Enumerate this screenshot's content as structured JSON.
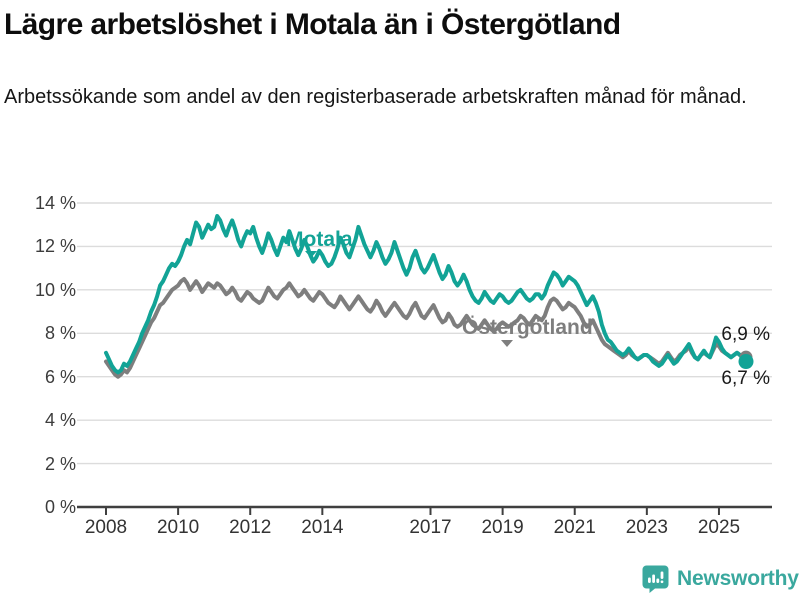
{
  "header": {
    "title": "Lägre arbetslöshet i Motala än i Östergötland",
    "subtitle": "Arbetssökande som andel av den registerbaserade arbetskraften månad för månad."
  },
  "colors": {
    "motala_teal": "#12a396",
    "ostergotland_gray": "#7e7e7e",
    "gridline": "#dcdcdc",
    "axis": "#3f3f3f",
    "tick_text": "#3c3c3c",
    "title_text": "#0d0d0d"
  },
  "chart_data": {
    "type": "line",
    "unit": "%",
    "frequency": "monthly",
    "x_start": "2008-01",
    "x_end": "2025-10",
    "ylim": [
      0,
      14
    ],
    "grid": "horizontal",
    "legend_position": "inline-labels",
    "yticks": [
      {
        "value": 14,
        "label": "14 %"
      },
      {
        "value": 12,
        "label": "12 %"
      },
      {
        "value": 10,
        "label": "10 %"
      },
      {
        "value": 8,
        "label": "8 %"
      },
      {
        "value": 6,
        "label": "6 %"
      },
      {
        "value": 4,
        "label": "4 %"
      },
      {
        "value": 2,
        "label": "2 %"
      },
      {
        "value": 0,
        "label": "0 %"
      }
    ],
    "xticks": [
      {
        "year": 2008,
        "label": "2008"
      },
      {
        "year": 2010,
        "label": "2010"
      },
      {
        "year": 2012,
        "label": "2012"
      },
      {
        "year": 2014,
        "label": "2014"
      },
      {
        "year": 2017,
        "label": "2017"
      },
      {
        "year": 2019,
        "label": "2019"
      },
      {
        "year": 2021,
        "label": "2021"
      },
      {
        "year": 2023,
        "label": "2023"
      },
      {
        "year": 2025,
        "label": "2025"
      }
    ],
    "series": [
      {
        "name": "Motala",
        "color": "#12a396",
        "end_value": 6.7,
        "end_label": "6,7 %",
        "values": [
          7.1,
          6.8,
          6.5,
          6.3,
          6.2,
          6.3,
          6.6,
          6.5,
          6.7,
          7.0,
          7.3,
          7.6,
          8.0,
          8.3,
          8.6,
          9.0,
          9.3,
          9.7,
          10.2,
          10.4,
          10.7,
          11.0,
          11.2,
          11.1,
          11.3,
          11.6,
          12.0,
          12.3,
          12.1,
          12.6,
          13.1,
          12.9,
          12.4,
          12.7,
          13.0,
          12.8,
          12.9,
          13.4,
          13.2,
          12.8,
          12.5,
          12.9,
          13.2,
          12.8,
          12.3,
          12.0,
          12.4,
          12.7,
          12.6,
          12.9,
          12.4,
          12.0,
          11.7,
          12.1,
          12.6,
          12.3,
          11.9,
          11.6,
          12.0,
          12.4,
          12.2,
          12.7,
          12.3,
          11.9,
          11.6,
          11.9,
          12.3,
          12.0,
          11.6,
          11.3,
          11.5,
          11.8,
          11.6,
          11.3,
          11.1,
          11.2,
          11.5,
          11.9,
          12.4,
          12.1,
          11.7,
          11.5,
          11.9,
          12.3,
          12.9,
          12.5,
          12.1,
          11.8,
          11.5,
          11.8,
          12.2,
          11.9,
          11.5,
          11.2,
          11.4,
          11.7,
          12.2,
          11.8,
          11.4,
          11.0,
          10.7,
          11.0,
          11.5,
          11.8,
          11.4,
          11.0,
          10.8,
          11.0,
          11.3,
          11.6,
          11.2,
          10.8,
          10.5,
          10.7,
          11.1,
          10.8,
          10.4,
          10.2,
          10.4,
          10.7,
          10.4,
          10.0,
          9.7,
          9.5,
          9.4,
          9.6,
          9.9,
          9.7,
          9.5,
          9.4,
          9.6,
          9.8,
          9.7,
          9.5,
          9.4,
          9.5,
          9.7,
          9.9,
          10.0,
          9.8,
          9.6,
          9.5,
          9.6,
          9.8,
          9.8,
          9.6,
          9.8,
          10.2,
          10.5,
          10.8,
          10.7,
          10.5,
          10.2,
          10.4,
          10.6,
          10.5,
          10.4,
          10.2,
          9.9,
          9.6,
          9.3,
          9.5,
          9.7,
          9.4,
          9.0,
          8.4,
          8.0,
          7.7,
          7.6,
          7.4,
          7.2,
          7.1,
          7.0,
          7.1,
          7.3,
          7.1,
          6.9,
          6.8,
          6.9,
          7.0,
          7.0,
          6.9,
          6.7,
          6.6,
          6.5,
          6.6,
          6.8,
          7.0,
          6.8,
          6.6,
          6.7,
          6.9,
          7.1,
          7.3,
          7.5,
          7.2,
          6.9,
          6.8,
          7.0,
          7.2,
          7.0,
          6.9,
          7.3,
          7.8,
          7.6,
          7.3,
          7.1,
          7.0,
          6.9,
          7.0,
          7.1,
          7.0,
          6.8,
          6.7
        ]
      },
      {
        "name": "Östergötland",
        "color": "#7e7e7e",
        "end_value": 6.9,
        "end_label": "6,9 %",
        "values": [
          6.7,
          6.5,
          6.3,
          6.1,
          6.0,
          6.1,
          6.3,
          6.2,
          6.4,
          6.7,
          7.0,
          7.3,
          7.6,
          7.9,
          8.2,
          8.5,
          8.7,
          9.0,
          9.3,
          9.4,
          9.6,
          9.8,
          10.0,
          10.1,
          10.2,
          10.4,
          10.5,
          10.3,
          10.0,
          10.2,
          10.4,
          10.2,
          9.9,
          10.1,
          10.3,
          10.2,
          10.1,
          10.3,
          10.2,
          10.0,
          9.8,
          9.9,
          10.1,
          9.9,
          9.6,
          9.5,
          9.7,
          9.9,
          9.8,
          9.6,
          9.5,
          9.4,
          9.5,
          9.8,
          10.1,
          9.9,
          9.7,
          9.6,
          9.8,
          10.0,
          10.1,
          10.3,
          10.1,
          9.9,
          9.7,
          9.8,
          10.0,
          9.8,
          9.6,
          9.5,
          9.7,
          9.9,
          9.8,
          9.6,
          9.4,
          9.3,
          9.2,
          9.4,
          9.7,
          9.5,
          9.3,
          9.1,
          9.3,
          9.5,
          9.7,
          9.5,
          9.3,
          9.1,
          9.0,
          9.2,
          9.5,
          9.3,
          9.0,
          8.8,
          9.0,
          9.2,
          9.4,
          9.2,
          9.0,
          8.8,
          8.7,
          8.9,
          9.2,
          9.4,
          9.1,
          8.8,
          8.7,
          8.9,
          9.1,
          9.3,
          9.0,
          8.7,
          8.5,
          8.6,
          8.9,
          8.7,
          8.4,
          8.3,
          8.4,
          8.6,
          8.8,
          8.6,
          8.4,
          8.3,
          8.2,
          8.4,
          8.6,
          8.4,
          8.2,
          8.1,
          8.2,
          8.4,
          8.5,
          8.4,
          8.3,
          8.4,
          8.5,
          8.6,
          8.8,
          8.7,
          8.5,
          8.4,
          8.6,
          8.8,
          8.7,
          8.6,
          8.8,
          9.2,
          9.5,
          9.6,
          9.5,
          9.3,
          9.1,
          9.2,
          9.4,
          9.3,
          9.2,
          9.0,
          8.8,
          8.5,
          8.3,
          8.4,
          8.6,
          8.3,
          8.0,
          7.7,
          7.5,
          7.4,
          7.3,
          7.2,
          7.1,
          7.0,
          6.9,
          7.0,
          7.2,
          7.0,
          6.9,
          6.8,
          6.9,
          7.0,
          7.0,
          6.9,
          6.8,
          6.7,
          6.6,
          6.7,
          6.9,
          7.1,
          6.9,
          6.7,
          6.8,
          7.0,
          7.1,
          7.2,
          7.4,
          7.1,
          6.9,
          6.8,
          7.0,
          7.1,
          7.0,
          6.9,
          7.2,
          7.5,
          7.4,
          7.2,
          7.1,
          7.0,
          6.9,
          7.0,
          7.1,
          7.0,
          6.9,
          6.9
        ]
      }
    ]
  },
  "footer": {
    "brand": "Newsworthy",
    "logo_color": "#3aa89e",
    "logo_icon": "bar-chart-speech-bubble"
  }
}
